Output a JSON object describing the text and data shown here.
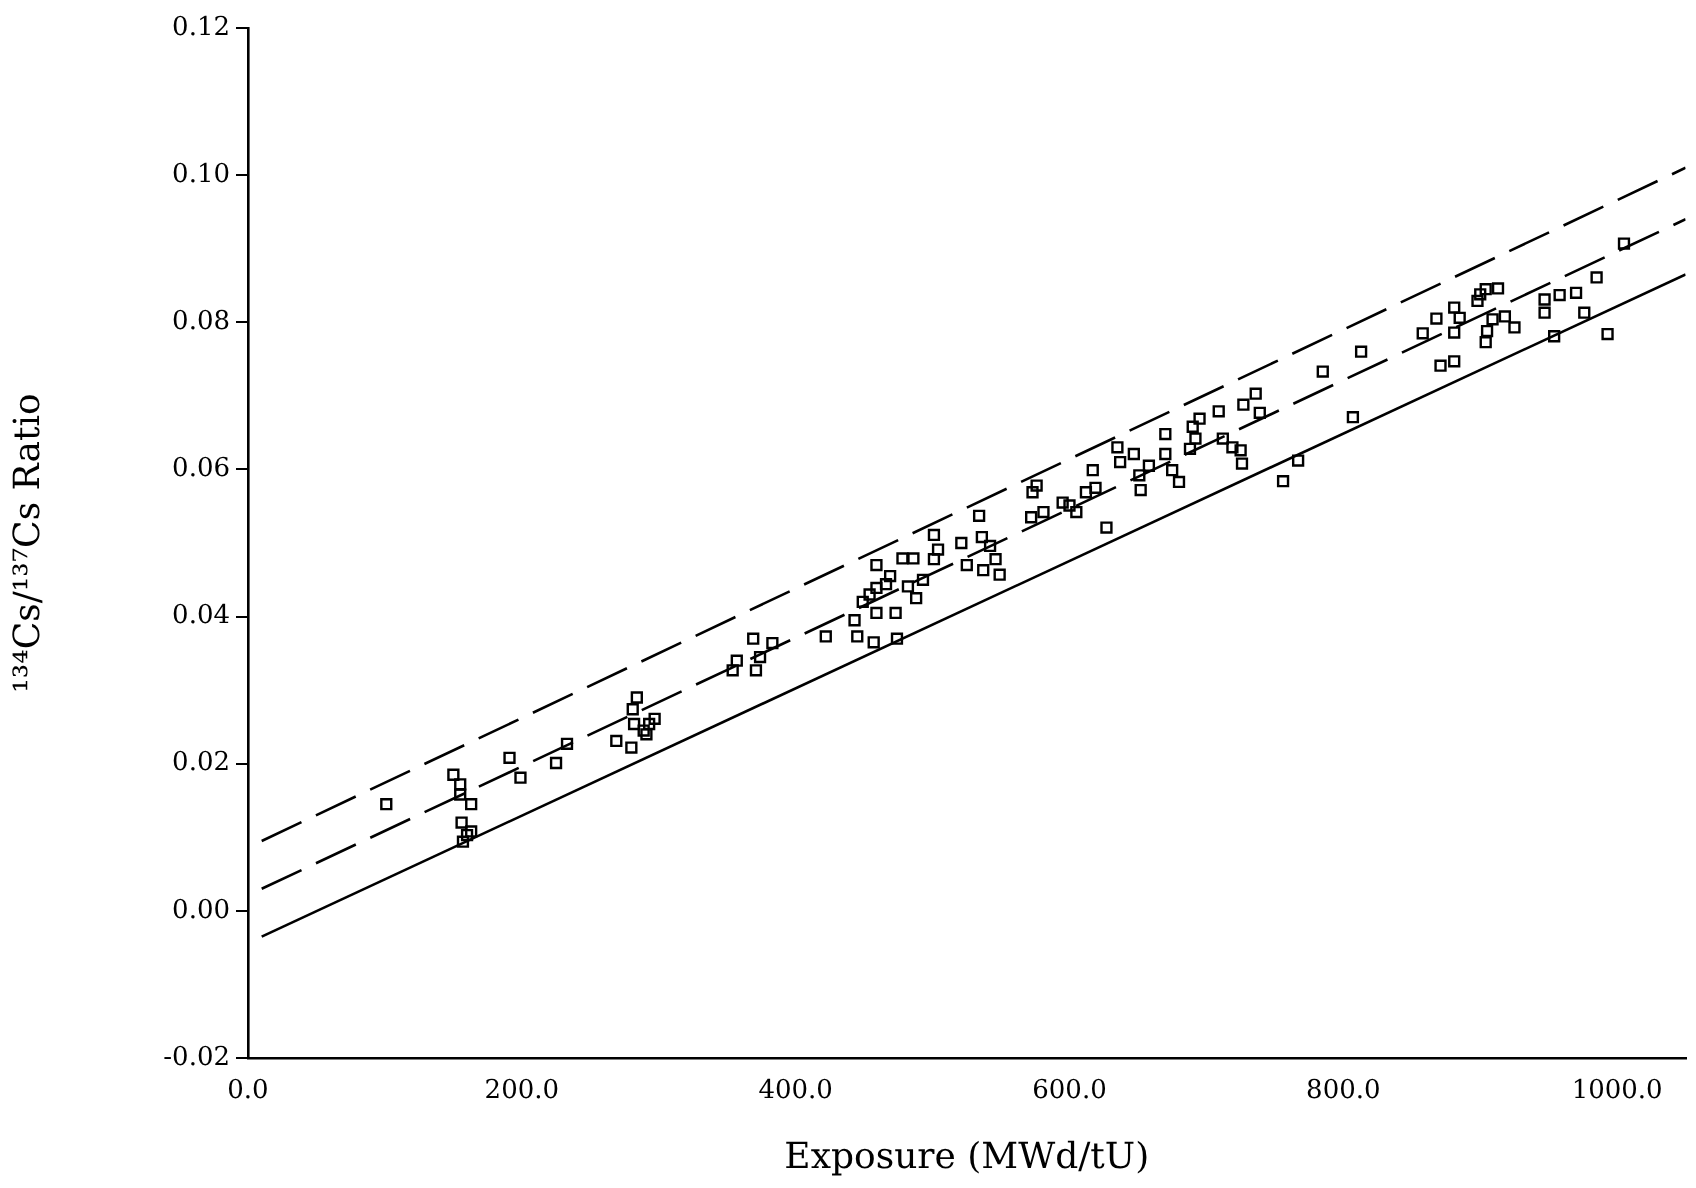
{
  "chart_data": {
    "type": "scatter",
    "xlabel": "Exposure (MWd/tU)",
    "ylabel": "¹³⁴Cs/¹³⁷Cs Ratio",
    "xlim": [
      0,
      1050
    ],
    "ylim": [
      -0.02,
      0.12
    ],
    "xticks": [
      {
        "value": 0,
        "label": "0.0"
      },
      {
        "value": 200,
        "label": "200.0"
      },
      {
        "value": 400,
        "label": "400.0"
      },
      {
        "value": 600,
        "label": "600.0"
      },
      {
        "value": 800,
        "label": "800.0"
      },
      {
        "value": 1000,
        "label": "1000.0"
      }
    ],
    "yticks": [
      {
        "value": -0.02,
        "label": "-0.02"
      },
      {
        "value": 0,
        "label": "0.00"
      },
      {
        "value": 0.02,
        "label": "0.02"
      },
      {
        "value": 0.04,
        "label": "0.04"
      },
      {
        "value": 0.06,
        "label": "0.06"
      },
      {
        "value": 0.08,
        "label": "0.08"
      },
      {
        "value": 0.1,
        "label": "0.10"
      },
      {
        "value": 0.12,
        "label": "0.12"
      }
    ],
    "grid": false,
    "legend": false,
    "marker": "square",
    "series": [
      {
        "type": "scatter",
        "color": "#000000",
        "x": [
          101,
          150,
          155,
          155,
          163,
          156,
          157,
          160,
          163,
          199,
          191,
          225,
          233,
          269,
          280,
          284,
          281,
          282,
          293,
          289,
          297,
          291,
          354,
          357,
          369,
          383,
          371,
          374,
          422,
          443,
          445,
          457,
          474,
          449,
          454,
          459,
          466,
          459,
          473,
          459,
          469,
          478,
          486,
          482,
          488,
          493,
          501,
          504,
          501,
          521,
          534,
          536,
          542,
          525,
          537,
          549,
          546,
          576,
          573,
          572,
          581,
          595,
          600,
          605,
          612,
          619,
          617,
          627,
          635,
          637,
          647,
          652,
          651,
          658,
          670,
          670,
          675,
          680,
          688,
          690,
          695,
          692,
          709,
          712,
          719,
          725,
          726,
          727,
          736,
          739,
          756,
          767,
          785,
          807,
          813,
          858,
          868,
          881,
          881,
          885,
          871,
          881,
          898,
          900,
          904,
          913,
          905,
          904,
          909,
          918,
          925,
          947,
          947,
          958,
          970,
          976,
          954,
          985,
          993,
          1005
        ],
        "values": [
          0.0145,
          0.0185,
          0.0172,
          0.0158,
          0.0145,
          0.012,
          0.0094,
          0.0103,
          0.0108,
          0.0181,
          0.0208,
          0.0201,
          0.0227,
          0.0231,
          0.0222,
          0.029,
          0.0274,
          0.0254,
          0.0254,
          0.0245,
          0.0261,
          0.024,
          0.0327,
          0.034,
          0.037,
          0.0364,
          0.0327,
          0.0345,
          0.0373,
          0.0395,
          0.0373,
          0.0365,
          0.037,
          0.042,
          0.043,
          0.0439,
          0.0444,
          0.0405,
          0.0405,
          0.047,
          0.0455,
          0.0479,
          0.0479,
          0.0441,
          0.0425,
          0.045,
          0.0511,
          0.0491,
          0.0478,
          0.05,
          0.0537,
          0.0508,
          0.0496,
          0.047,
          0.0463,
          0.0457,
          0.0478,
          0.0578,
          0.0569,
          0.0535,
          0.0542,
          0.0555,
          0.0551,
          0.0542,
          0.0569,
          0.0575,
          0.0599,
          0.0521,
          0.063,
          0.061,
          0.0621,
          0.0572,
          0.0592,
          0.0605,
          0.0648,
          0.0621,
          0.0599,
          0.0583,
          0.0628,
          0.0658,
          0.0669,
          0.0642,
          0.0679,
          0.0642,
          0.063,
          0.0626,
          0.0608,
          0.0688,
          0.0703,
          0.0677,
          0.0584,
          0.0612,
          0.0733,
          0.0671,
          0.076,
          0.0785,
          0.0805,
          0.082,
          0.0786,
          0.0806,
          0.0741,
          0.0747,
          0.0829,
          0.0838,
          0.0845,
          0.0846,
          0.0788,
          0.0773,
          0.0804,
          0.0808,
          0.0793,
          0.0831,
          0.0813,
          0.0837,
          0.084,
          0.0813,
          0.0781,
          0.0861,
          0.0784,
          0.0907
        ]
      },
      {
        "type": "line",
        "color": "#000000",
        "marker": "none",
        "line_style": "dashed",
        "x": [
          10,
          1050
        ],
        "values": [
          0.0095,
          0.101
        ]
      },
      {
        "type": "line",
        "color": "#000000",
        "marker": "none",
        "line_style": "dashed",
        "x": [
          10,
          1050
        ],
        "values": [
          0.003,
          0.094
        ]
      },
      {
        "type": "line",
        "color": "#000000",
        "marker": "none",
        "line_style": "solid",
        "x": [
          10,
          1050
        ],
        "values": [
          -0.0035,
          0.0865
        ]
      }
    ]
  }
}
